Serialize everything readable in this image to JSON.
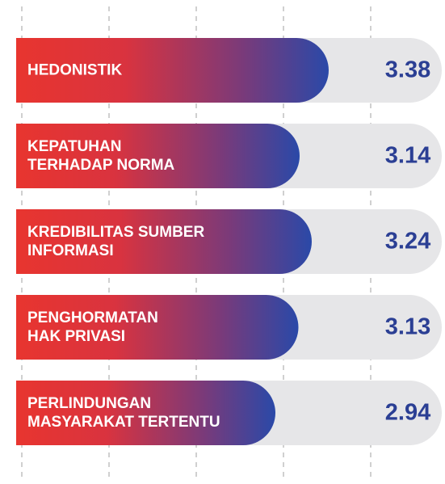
{
  "chart_data": {
    "type": "bar",
    "orientation": "horizontal",
    "categories": [
      "HEDONISTIK",
      "KEPATUHAN\nTERHADAP NORMA",
      "KREDIBILITAS SUMBER\nINFORMASI",
      "PENGHORMATAN\nHAK PRIVASI",
      "PERLINDUNGAN\nMASYARAKAT TERTENTU"
    ],
    "values": [
      3.38,
      3.14,
      3.24,
      3.13,
      2.94
    ],
    "xlim": [
      0.8,
      4.3
    ],
    "colors": {
      "start": "#e8352f",
      "end": "#2a49a8",
      "track": "#e6e6e8",
      "value_text": "#2b3f94"
    }
  }
}
